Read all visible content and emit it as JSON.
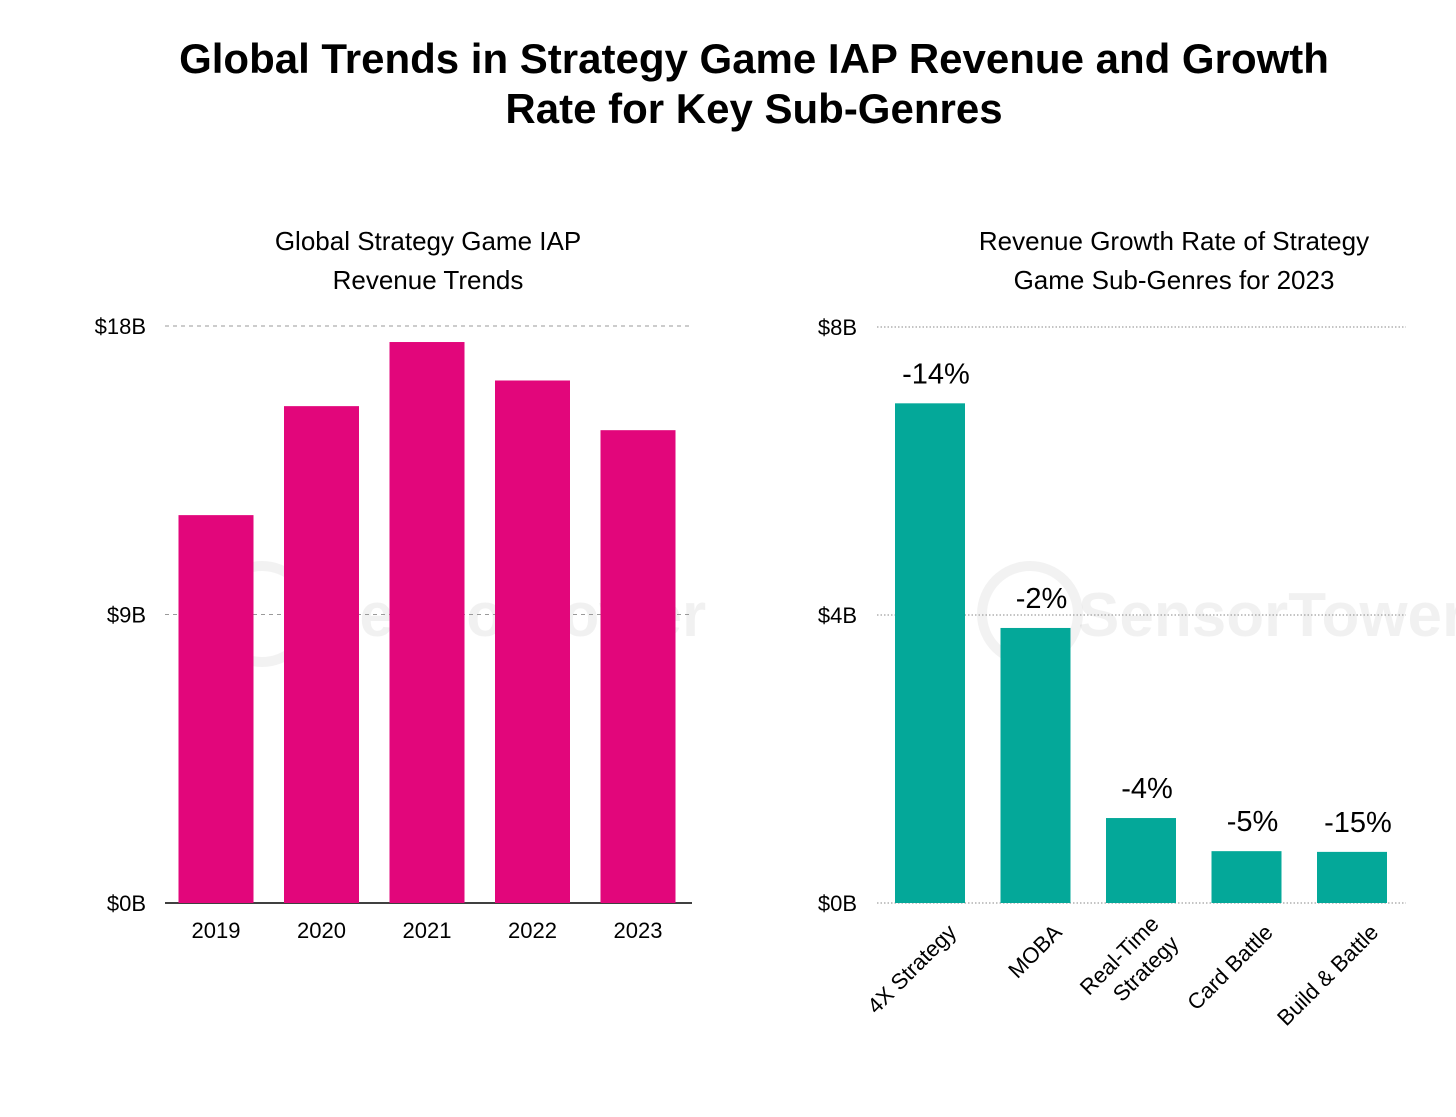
{
  "title": {
    "line1": "Global Trends in Strategy Game IAP Revenue and Growth",
    "line2": "Rate for Key Sub-Genres"
  },
  "watermark": "SensorTower",
  "chart_data": [
    {
      "type": "bar",
      "title_lines": [
        "Global Strategy Game IAP",
        "Revenue Trends"
      ],
      "categories": [
        "2019",
        "2020",
        "2021",
        "2022",
        "2023"
      ],
      "values": [
        12.1,
        15.5,
        17.5,
        16.3,
        14.75
      ],
      "unit": "$B",
      "xlabel": "",
      "ylabel": "",
      "ylim": [
        0,
        18
      ],
      "yticks": [
        0,
        9,
        18
      ],
      "ytick_labels": [
        "$0B",
        "$9B",
        "$18B"
      ],
      "grid": true,
      "color": "#E2067B",
      "data_labels": []
    },
    {
      "type": "bar",
      "title_lines": [
        "Revenue Growth Rate of Strategy",
        "Game Sub-Genres for 2023"
      ],
      "categories": [
        "4X Strategy",
        "MOBA",
        "Real-Time Strategy",
        "Card Battle",
        "Build & Battle"
      ],
      "category_lines": [
        [
          "4X Strategy"
        ],
        [
          "MOBA"
        ],
        [
          "Real-Time",
          "Strategy"
        ],
        [
          "Card Battle"
        ],
        [
          "Build & Battle"
        ]
      ],
      "values": [
        6.94,
        3.82,
        1.18,
        0.72,
        0.71
      ],
      "unit": "$B",
      "xlabel": "",
      "ylabel": "",
      "ylim": [
        0,
        8
      ],
      "yticks": [
        0,
        4,
        8
      ],
      "ytick_labels": [
        "$0B",
        "$4B",
        "$8B"
      ],
      "grid": true,
      "color": "#04A899",
      "data_labels": [
        "-14%",
        "-2%",
        "-4%",
        "-5%",
        "-15%"
      ]
    }
  ]
}
